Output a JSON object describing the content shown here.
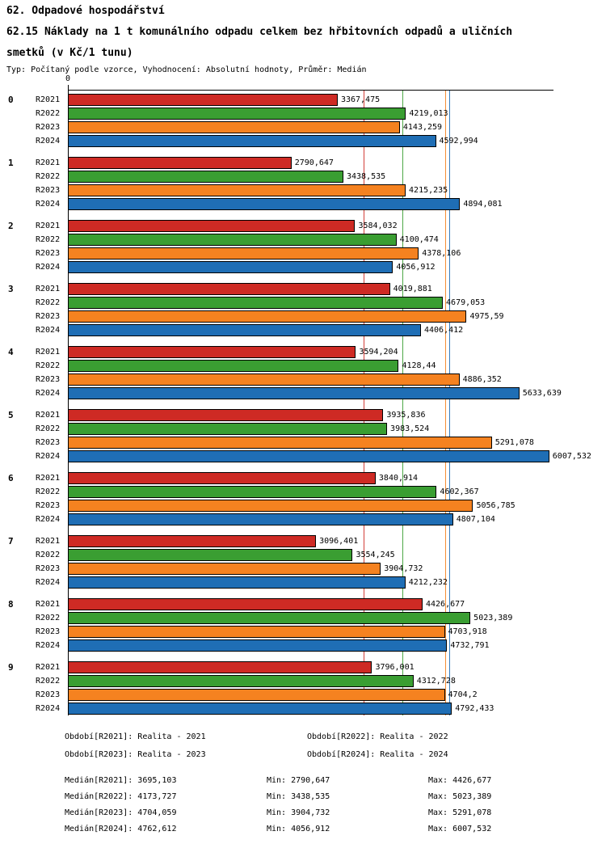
{
  "chart_data": {
    "type": "bar",
    "orientation": "horizontal",
    "title": "62. Odpadové hospodářství",
    "subtitle": "62.15 Náklady na 1 t komunálního odpadu celkem bez hřbitovních odpadů a uličních smetků (v Kč/1 tunu)",
    "note": "Typ: Počítaný podle vzorce, Vyhodnocení: Absolutní hodnoty, Průměr: Medián",
    "value_unit": "Kč/1 tunu",
    "xlim": [
      0,
      6050
    ],
    "axis_zero_label": "0",
    "grid": "median-lines",
    "legend_position": "bottom",
    "categories": [
      "0",
      "1",
      "2",
      "3",
      "4",
      "5",
      "6",
      "7",
      "8",
      "9"
    ],
    "series": [
      {
        "name": "R2021",
        "color": "#CE2A24",
        "values": [
          "3367,475",
          "2790,647",
          "3584,032",
          "4019,881",
          "3594,204",
          "3935,836",
          "3840,914",
          "3096,401",
          "4426,677",
          "3796,001"
        ]
      },
      {
        "name": "R2022",
        "color": "#3A9E32",
        "values": [
          "4219,013",
          "3438,535",
          "4100,474",
          "4679,053",
          "4128,44",
          "3983,524",
          "4602,367",
          "3554,245",
          "5023,389",
          "4312,728"
        ]
      },
      {
        "name": "R2023",
        "color": "#F58220",
        "values": [
          "4143,259",
          "4215,235",
          "4378,106",
          "4975,59",
          "4886,352",
          "5291,078",
          "5056,785",
          "3904,732",
          "4703,918",
          "4704,2"
        ]
      },
      {
        "name": "R2024",
        "color": "#1F6EB5",
        "values": [
          "4592,994",
          "4894,081",
          "4056,912",
          "4406,412",
          "5633,639",
          "6007,532",
          "4807,104",
          "4212,232",
          "4732,791",
          "4792,433"
        ]
      }
    ],
    "medians": {
      "R2021": "3695,103",
      "R2022": "4173,727",
      "R2023": "4704,059",
      "R2024": "4762,612"
    },
    "legend": [
      {
        "label": "Období[R2021]: Realita - 2021"
      },
      {
        "label": "Období[R2022]: Realita - 2022"
      },
      {
        "label": "Období[R2023]: Realita - 2023"
      },
      {
        "label": "Období[R2024]: Realita - 2024"
      }
    ],
    "stats": [
      {
        "median": "Medián[R2021]: 3695,103",
        "min": "Min: 2790,647",
        "max": "Max: 4426,677"
      },
      {
        "median": "Medián[R2022]: 4173,727",
        "min": "Min: 3438,535",
        "max": "Max: 5023,389"
      },
      {
        "median": "Medián[R2023]: 4704,059",
        "min": "Min: 3904,732",
        "max": "Max: 5291,078"
      },
      {
        "median": "Medián[R2024]: 4762,612",
        "min": "Min: 4056,912",
        "max": "Max: 6007,532"
      }
    ]
  }
}
